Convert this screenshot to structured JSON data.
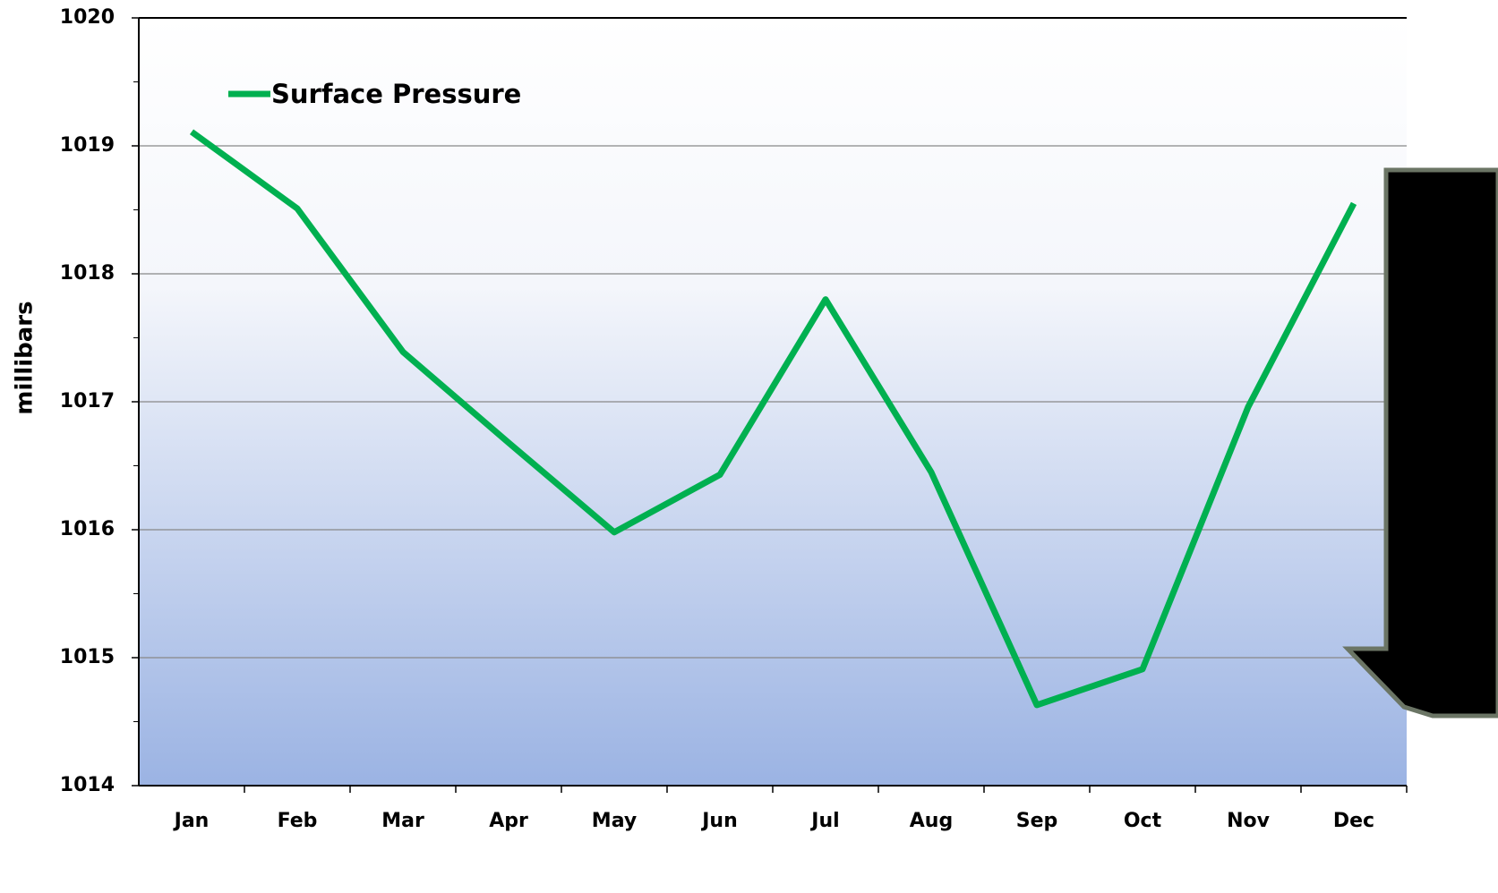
{
  "chart_data": {
    "type": "line",
    "y_label": "millibars",
    "categories": [
      "Jan",
      "Feb",
      "Mar",
      "Apr",
      "May",
      "Jun",
      "Jul",
      "Aug",
      "Sep",
      "Oct",
      "Nov",
      "Dec"
    ],
    "series": [
      {
        "name": "Surface Pressure",
        "color": "#00b050",
        "values": [
          1019.11,
          1018.51,
          1017.39,
          1016.68,
          1015.98,
          1016.43,
          1017.8,
          1016.45,
          1014.63,
          1014.91,
          1016.96,
          1018.55
        ]
      }
    ],
    "ylim": [
      1014,
      1020
    ],
    "yticks": [
      1014,
      1015,
      1016,
      1017,
      1018,
      1019,
      1020
    ],
    "grid": true,
    "legend": "upper left"
  }
}
